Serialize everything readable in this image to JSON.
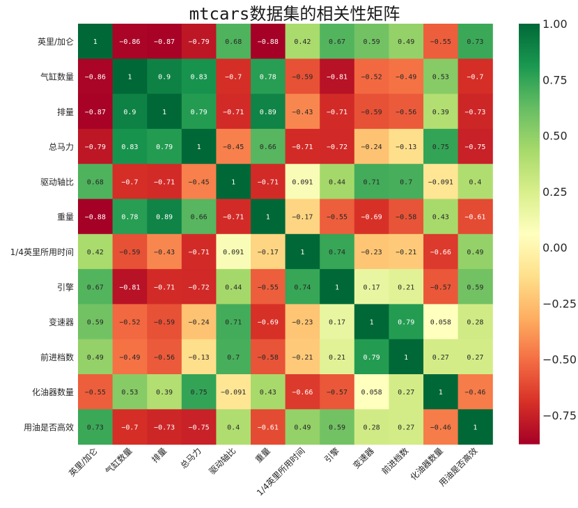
{
  "chart_data": {
    "type": "heatmap",
    "title": "mtcars数据集的相关性矩阵",
    "labels": [
      "英里/加仑",
      "气缸数量",
      "排量",
      "总马力",
      "驱动轴比",
      "重量",
      "1/4英里所用时间",
      "引擎",
      "变速器",
      "前进档数",
      "化油器数量",
      "用油是否高效"
    ],
    "matrix": [
      [
        1,
        -0.86,
        -0.87,
        -0.79,
        0.68,
        -0.88,
        0.42,
        0.67,
        0.59,
        0.49,
        -0.55,
        0.73
      ],
      [
        -0.86,
        1,
        0.9,
        0.83,
        -0.7,
        0.78,
        -0.59,
        -0.81,
        -0.52,
        -0.49,
        0.53,
        -0.7
      ],
      [
        -0.87,
        0.9,
        1,
        0.79,
        -0.71,
        0.89,
        -0.43,
        -0.71,
        -0.59,
        -0.56,
        0.39,
        -0.73
      ],
      [
        -0.79,
        0.83,
        0.79,
        1,
        -0.45,
        0.66,
        -0.71,
        -0.72,
        -0.24,
        -0.13,
        0.75,
        -0.75
      ],
      [
        0.68,
        -0.7,
        -0.71,
        -0.45,
        1,
        -0.71,
        0.091,
        0.44,
        0.71,
        0.7,
        -0.091,
        0.4
      ],
      [
        -0.88,
        0.78,
        0.89,
        0.66,
        -0.71,
        1,
        -0.17,
        -0.55,
        -0.69,
        -0.58,
        0.43,
        -0.61
      ],
      [
        0.42,
        -0.59,
        -0.43,
        -0.71,
        0.091,
        -0.17,
        1,
        0.74,
        -0.23,
        -0.21,
        -0.66,
        0.49
      ],
      [
        0.67,
        -0.81,
        -0.71,
        -0.72,
        0.44,
        -0.55,
        0.74,
        1,
        0.17,
        0.21,
        -0.57,
        0.59
      ],
      [
        0.59,
        -0.52,
        -0.59,
        -0.24,
        0.71,
        -0.69,
        -0.23,
        0.17,
        1,
        0.79,
        0.058,
        0.28
      ],
      [
        0.49,
        -0.49,
        -0.56,
        -0.13,
        0.7,
        -0.58,
        -0.21,
        0.21,
        0.79,
        1,
        0.27,
        0.27
      ],
      [
        -0.55,
        0.53,
        0.39,
        0.75,
        -0.091,
        0.43,
        -0.66,
        -0.57,
        0.058,
        0.27,
        1,
        -0.46
      ],
      [
        0.73,
        -0.7,
        -0.73,
        -0.75,
        0.4,
        -0.61,
        0.49,
        0.59,
        0.28,
        0.27,
        -0.46,
        1
      ]
    ],
    "colorscale": "RdYlGn",
    "vmin": -0.88,
    "vmax": 1,
    "colorbar_ticks": [
      "1.00",
      "0.75",
      "0.50",
      "0.25",
      "0.00",
      "−0.25",
      "−0.50",
      "−0.75"
    ],
    "colorbar_tick_values": [
      1,
      0.75,
      0.5,
      0.25,
      0,
      -0.25,
      -0.5,
      -0.75
    ],
    "annotations": true
  }
}
